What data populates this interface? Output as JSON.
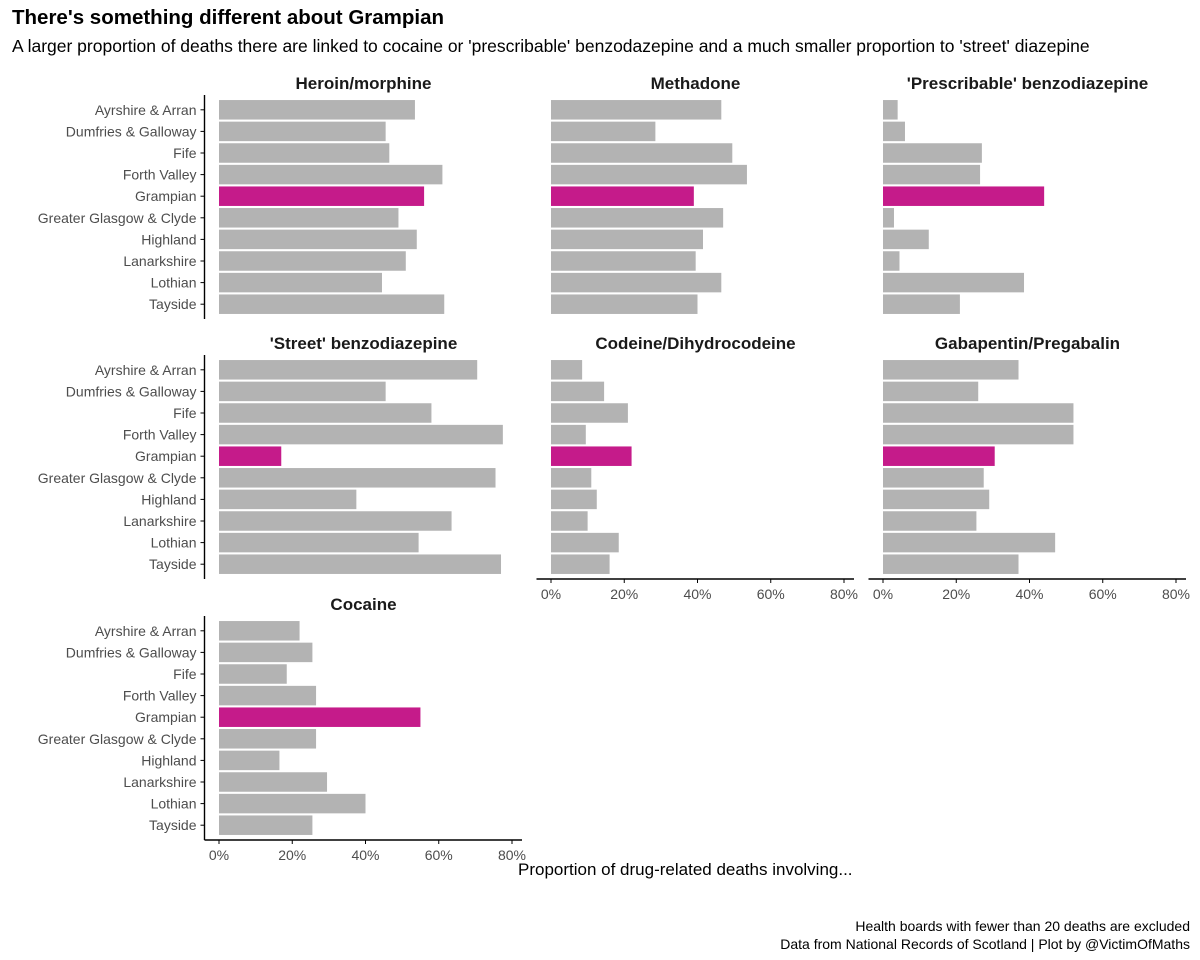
{
  "title": "There's something different about Grampian",
  "subtitle": "A larger proportion of deaths there are linked to cocaine or 'prescribable' benzodazepine and a much smaller proportion to 'street' diazepine",
  "caption": {
    "line1": "Health boards with fewer than 20 deaths are excluded",
    "line2": "Data from National Records of Scotland | Plot by @VictimOfMaths"
  },
  "colors": {
    "default_bar": "#b3b3b3",
    "highlight_bar": "#c51b8a",
    "axis": "#000000"
  },
  "chart_data": {
    "type": "bar",
    "orientation": "horizontal",
    "xlabel": "Proportion of drug-related deaths involving...",
    "xlim": [
      0,
      0.8
    ],
    "xticks": [
      "0%",
      "20%",
      "40%",
      "60%",
      "80%"
    ],
    "highlight_category": "Grampian",
    "categories": [
      "Ayrshire & Arran",
      "Dumfries & Galloway",
      "Fife",
      "Forth Valley",
      "Grampian",
      "Greater Glasgow & Clyde",
      "Highland",
      "Lanarkshire",
      "Lothian",
      "Tayside"
    ],
    "series": [
      {
        "name": "Heroin/morphine",
        "values": [
          0.535,
          0.455,
          0.465,
          0.61,
          0.56,
          0.49,
          0.54,
          0.51,
          0.445,
          0.615
        ]
      },
      {
        "name": "Methadone",
        "values": [
          0.465,
          0.285,
          0.495,
          0.535,
          0.39,
          0.47,
          0.415,
          0.395,
          0.465,
          0.4
        ]
      },
      {
        "name": "'Prescribable' benzodiazepine",
        "values": [
          0.04,
          0.06,
          0.27,
          0.265,
          0.44,
          0.03,
          0.125,
          0.045,
          0.385,
          0.21
        ]
      },
      {
        "name": "'Street' benzodiazepine",
        "values": [
          0.705,
          0.455,
          0.58,
          0.775,
          0.17,
          0.755,
          0.375,
          0.635,
          0.545,
          0.77
        ]
      },
      {
        "name": "Codeine/Dihydrocodeine",
        "values": [
          0.085,
          0.145,
          0.21,
          0.095,
          0.22,
          0.11,
          0.125,
          0.1,
          0.185,
          0.16
        ]
      },
      {
        "name": "Gabapentin/Pregabalin",
        "values": [
          0.37,
          0.26,
          0.52,
          0.52,
          0.305,
          0.275,
          0.29,
          0.255,
          0.47,
          0.37
        ]
      },
      {
        "name": "Cocaine",
        "values": [
          0.22,
          0.255,
          0.185,
          0.265,
          0.55,
          0.265,
          0.165,
          0.295,
          0.4,
          0.255
        ]
      }
    ]
  }
}
